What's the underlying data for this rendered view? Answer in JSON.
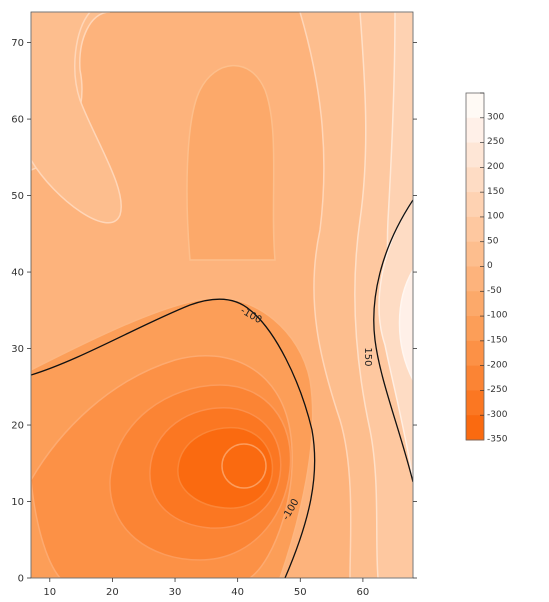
{
  "chart_data": {
    "type": "contour",
    "title": "",
    "xlabel": "",
    "ylabel": "",
    "xlim": [
      7,
      68
    ],
    "ylim": [
      0,
      74
    ],
    "x_ticks": [
      10,
      20,
      30,
      40,
      50,
      60
    ],
    "y_ticks": [
      0,
      10,
      20,
      30,
      40,
      50,
      60,
      70
    ],
    "colormap": "orange sequential (dark orange = low, white = high)",
    "levels": [
      -350,
      -300,
      -250,
      -200,
      -150,
      -100,
      -50,
      0,
      50,
      100,
      150,
      200,
      250,
      300
    ],
    "level_colors": [
      "#fa6a10",
      "#fb7722",
      "#fb8434",
      "#fc9146",
      "#fc9e58",
      "#fca96a",
      "#fdb37c",
      "#fdbe8e",
      "#fec8a0",
      "#fed2b2",
      "#fedcc4",
      "#fee6d6",
      "#fff0e8",
      "#fffaf5"
    ],
    "legend_labels": [
      "300",
      "250",
      "200",
      "150",
      "100",
      "50",
      "0",
      "-50",
      "-100",
      "-150",
      "-200",
      "-250",
      "-300",
      "-350"
    ],
    "contour_labels": [
      {
        "text": "-100",
        "x": 42.2,
        "y": 34.4
      },
      {
        "text": "-100",
        "x": 48.4,
        "y": 9.0
      },
      {
        "text": "150",
        "x": 60.9,
        "y": 28.9
      }
    ],
    "features": {
      "minimum": {
        "x": 41,
        "y": 15,
        "approx_value": -350
      },
      "maximum_region": {
        "x": 67,
        "y": 32,
        "approx_value": 300
      }
    }
  }
}
